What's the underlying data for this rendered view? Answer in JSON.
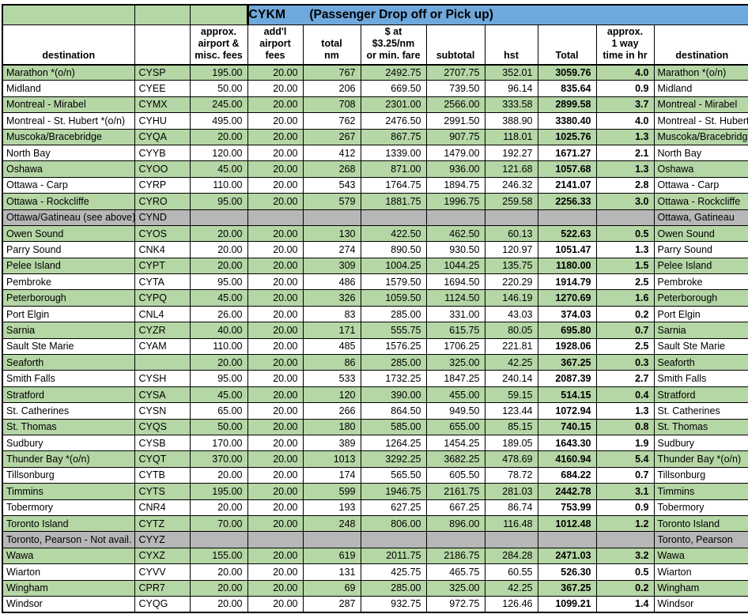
{
  "title": {
    "code": "CYKM",
    "caption": "(Passenger Drop off or Pick up)"
  },
  "colors": {
    "row_green": "#b5d6a5",
    "band_blue": "#6fa8dc",
    "row_grey": "#b7b7b7",
    "grid_border": "#000000"
  },
  "columns": [
    "destination",
    "",
    "approx.\nairport &\nmisc. fees",
    "add'l\nairport\nfees",
    "total\nnm",
    "$ at\n$3.25/nm\nor min. fare",
    "subtotal",
    "hst",
    "Total",
    "approx.\n1 way\ntime in hr",
    "destination"
  ],
  "rows": [
    {
      "t": "g",
      "c": [
        "Marathon *(o/n)",
        "CYSP",
        "195.00",
        "20.00",
        "767",
        "2492.75",
        "2707.75",
        "352.01",
        "3059.76",
        "4.0",
        "Marathon *(o/n)"
      ]
    },
    {
      "t": "w",
      "c": [
        "Midland",
        "CYEE",
        "50.00",
        "20.00",
        "206",
        "669.50",
        "739.50",
        "96.14",
        "835.64",
        "0.9",
        "Midland"
      ]
    },
    {
      "t": "g",
      "c": [
        "Montreal - Mirabel",
        "CYMX",
        "245.00",
        "20.00",
        "708",
        "2301.00",
        "2566.00",
        "333.58",
        "2899.58",
        "3.7",
        "Montreal - Mirabel"
      ]
    },
    {
      "t": "w",
      "c": [
        "Montreal - St. Hubert *(o/n)",
        "CYHU",
        "495.00",
        "20.00",
        "762",
        "2476.50",
        "2991.50",
        "388.90",
        "3380.40",
        "4.0",
        "Montreal - St. Hubert *(o/n)"
      ]
    },
    {
      "t": "g",
      "c": [
        "Muscoka/Bracebridge",
        "CYQA",
        "20.00",
        "20.00",
        "267",
        "867.75",
        "907.75",
        "118.01",
        "1025.76",
        "1.3",
        "Muscoka/Bracebridge"
      ]
    },
    {
      "t": "w",
      "c": [
        "North Bay",
        "CYYB",
        "120.00",
        "20.00",
        "412",
        "1339.00",
        "1479.00",
        "192.27",
        "1671.27",
        "2.1",
        "North Bay"
      ]
    },
    {
      "t": "g",
      "c": [
        "Oshawa",
        "CYOO",
        "45.00",
        "20.00",
        "268",
        "871.00",
        "936.00",
        "121.68",
        "1057.68",
        "1.3",
        "Oshawa"
      ]
    },
    {
      "t": "w",
      "c": [
        "Ottawa - Carp",
        "CYRP",
        "110.00",
        "20.00",
        "543",
        "1764.75",
        "1894.75",
        "246.32",
        "2141.07",
        "2.8",
        "Ottawa - Carp"
      ]
    },
    {
      "t": "g",
      "c": [
        "Ottawa - Rockcliffe",
        "CYRO",
        "95.00",
        "20.00",
        "579",
        "1881.75",
        "1996.75",
        "259.58",
        "2256.33",
        "3.0",
        "Ottawa - Rockcliffe"
      ]
    },
    {
      "t": "x",
      "c": [
        "Ottawa/Gatineau (see above)",
        "CYND",
        "",
        "",
        "",
        "",
        "",
        "",
        "",
        "",
        "Ottawa, Gatineau"
      ]
    },
    {
      "t": "g",
      "c": [
        "Owen Sound",
        "CYOS",
        "20.00",
        "20.00",
        "130",
        "422.50",
        "462.50",
        "60.13",
        "522.63",
        "0.5",
        "Owen Sound"
      ]
    },
    {
      "t": "w",
      "c": [
        "Parry Sound",
        "CNK4",
        "20.00",
        "20.00",
        "274",
        "890.50",
        "930.50",
        "120.97",
        "1051.47",
        "1.3",
        "Parry Sound"
      ]
    },
    {
      "t": "g",
      "c": [
        "Pelee Island",
        "CYPT",
        "20.00",
        "20.00",
        "309",
        "1004.25",
        "1044.25",
        "135.75",
        "1180.00",
        "1.5",
        "Pelee Island"
      ]
    },
    {
      "t": "w",
      "c": [
        "Pembroke",
        "CYTA",
        "95.00",
        "20.00",
        "486",
        "1579.50",
        "1694.50",
        "220.29",
        "1914.79",
        "2.5",
        "Pembroke"
      ]
    },
    {
      "t": "g",
      "c": [
        "Peterborough",
        "CYPQ",
        "45.00",
        "20.00",
        "326",
        "1059.50",
        "1124.50",
        "146.19",
        "1270.69",
        "1.6",
        "Peterborough"
      ]
    },
    {
      "t": "w",
      "c": [
        "Port Elgin",
        "CNL4",
        "26.00",
        "20.00",
        "83",
        "285.00",
        "331.00",
        "43.03",
        "374.03",
        "0.2",
        "Port Elgin"
      ]
    },
    {
      "t": "g",
      "c": [
        "Sarnia",
        "CYZR",
        "40.00",
        "20.00",
        "171",
        "555.75",
        "615.75",
        "80.05",
        "695.80",
        "0.7",
        "Sarnia"
      ]
    },
    {
      "t": "w",
      "c": [
        "Sault Ste Marie",
        "CYAM",
        "110.00",
        "20.00",
        "485",
        "1576.25",
        "1706.25",
        "221.81",
        "1928.06",
        "2.5",
        "Sault Ste Marie"
      ]
    },
    {
      "t": "g",
      "c": [
        "Seaforth",
        "",
        "20.00",
        "20.00",
        "86",
        "285.00",
        "325.00",
        "42.25",
        "367.25",
        "0.3",
        "Seaforth"
      ]
    },
    {
      "t": "w",
      "c": [
        "Smith Falls",
        "CYSH",
        "95.00",
        "20.00",
        "533",
        "1732.25",
        "1847.25",
        "240.14",
        "2087.39",
        "2.7",
        "Smith Falls"
      ]
    },
    {
      "t": "g",
      "c": [
        "Stratford",
        "CYSA",
        "45.00",
        "20.00",
        "120",
        "390.00",
        "455.00",
        "59.15",
        "514.15",
        "0.4",
        "Stratford"
      ]
    },
    {
      "t": "w",
      "c": [
        "St. Catherines",
        "CYSN",
        "65.00",
        "20.00",
        "266",
        "864.50",
        "949.50",
        "123.44",
        "1072.94",
        "1.3",
        "St. Catherines"
      ]
    },
    {
      "t": "g",
      "c": [
        "St. Thomas",
        "CYQS",
        "50.00",
        "20.00",
        "180",
        "585.00",
        "655.00",
        "85.15",
        "740.15",
        "0.8",
        "St. Thomas"
      ]
    },
    {
      "t": "w",
      "c": [
        "Sudbury",
        "CYSB",
        "170.00",
        "20.00",
        "389",
        "1264.25",
        "1454.25",
        "189.05",
        "1643.30",
        "1.9",
        "Sudbury"
      ]
    },
    {
      "t": "g",
      "c": [
        "Thunder Bay *(o/n)",
        "CYQT",
        "370.00",
        "20.00",
        "1013",
        "3292.25",
        "3682.25",
        "478.69",
        "4160.94",
        "5.4",
        "Thunder Bay *(o/n)"
      ]
    },
    {
      "t": "w",
      "c": [
        "Tillsonburg",
        "CYTB",
        "20.00",
        "20.00",
        "174",
        "565.50",
        "605.50",
        "78.72",
        "684.22",
        "0.7",
        "Tillsonburg"
      ]
    },
    {
      "t": "g",
      "c": [
        "Timmins",
        "CYTS",
        "195.00",
        "20.00",
        "599",
        "1946.75",
        "2161.75",
        "281.03",
        "2442.78",
        "3.1",
        "Timmins"
      ]
    },
    {
      "t": "w",
      "c": [
        "Tobermory",
        "CNR4",
        "20.00",
        "20.00",
        "193",
        "627.25",
        "667.25",
        "86.74",
        "753.99",
        "0.9",
        "Tobermory"
      ]
    },
    {
      "t": "g",
      "c": [
        "Toronto Island",
        "CYTZ",
        "70.00",
        "20.00",
        "248",
        "806.00",
        "896.00",
        "116.48",
        "1012.48",
        "1.2",
        "Toronto Island"
      ]
    },
    {
      "t": "x",
      "c": [
        "Toronto, Pearson - Not avail.",
        "CYYZ",
        "",
        "",
        "",
        "",
        "",
        "",
        "",
        "",
        "Toronto, Pearson"
      ]
    },
    {
      "t": "g",
      "c": [
        "Wawa",
        "CYXZ",
        "155.00",
        "20.00",
        "619",
        "2011.75",
        "2186.75",
        "284.28",
        "2471.03",
        "3.2",
        "Wawa"
      ]
    },
    {
      "t": "w",
      "c": [
        "Wiarton",
        "CYVV",
        "20.00",
        "20.00",
        "131",
        "425.75",
        "465.75",
        "60.55",
        "526.30",
        "0.5",
        "Wiarton"
      ]
    },
    {
      "t": "g",
      "c": [
        "Wingham",
        "CPR7",
        "20.00",
        "20.00",
        "69",
        "285.00",
        "325.00",
        "42.25",
        "367.25",
        "0.2",
        "Wingham"
      ]
    },
    {
      "t": "w",
      "c": [
        "Windsor",
        "CYQG",
        "20.00",
        "20.00",
        "287",
        "932.75",
        "972.75",
        "126.46",
        "1099.21",
        "1.4",
        "Windsor"
      ]
    }
  ]
}
